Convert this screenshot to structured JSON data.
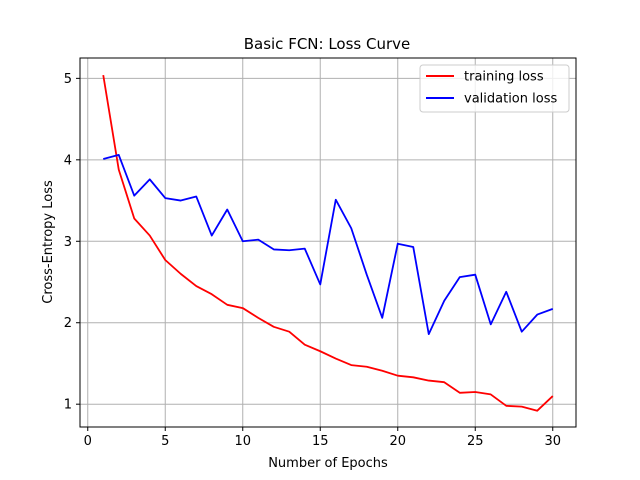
{
  "chart_data": {
    "type": "line",
    "title": "Basic FCN: Loss Curve",
    "xlabel": "Number of Epochs",
    "ylabel": "Cross-Entropy Loss",
    "xlim": [
      -0.5,
      31.5
    ],
    "ylim": [
      0.72,
      5.25
    ],
    "xticks": [
      0,
      5,
      10,
      15,
      20,
      25,
      30
    ],
    "yticks": [
      1,
      2,
      3,
      4,
      5
    ],
    "grid": true,
    "legend_position": "top-right",
    "x": [
      1,
      2,
      3,
      4,
      5,
      6,
      7,
      8,
      9,
      10,
      11,
      12,
      13,
      14,
      15,
      16,
      17,
      18,
      19,
      20,
      21,
      22,
      23,
      24,
      25,
      26,
      27,
      28,
      29,
      30
    ],
    "series": [
      {
        "name": "training loss",
        "color": "#ff0000",
        "values": [
          5.04,
          3.88,
          3.28,
          3.07,
          2.77,
          2.6,
          2.45,
          2.35,
          2.22,
          2.18,
          2.06,
          1.95,
          1.89,
          1.73,
          1.65,
          1.56,
          1.48,
          1.46,
          1.41,
          1.35,
          1.33,
          1.29,
          1.27,
          1.14,
          1.15,
          1.12,
          0.98,
          0.97,
          0.92,
          1.1
        ]
      },
      {
        "name": "validation loss",
        "color": "#0000ff",
        "values": [
          4.01,
          4.06,
          3.56,
          3.76,
          3.53,
          3.5,
          3.55,
          3.07,
          3.39,
          3.0,
          3.02,
          2.9,
          2.89,
          2.91,
          2.47,
          3.51,
          3.16,
          2.59,
          2.06,
          2.97,
          2.93,
          1.86,
          2.27,
          2.56,
          2.59,
          1.98,
          2.38,
          1.89,
          2.1,
          2.17
        ]
      }
    ]
  }
}
